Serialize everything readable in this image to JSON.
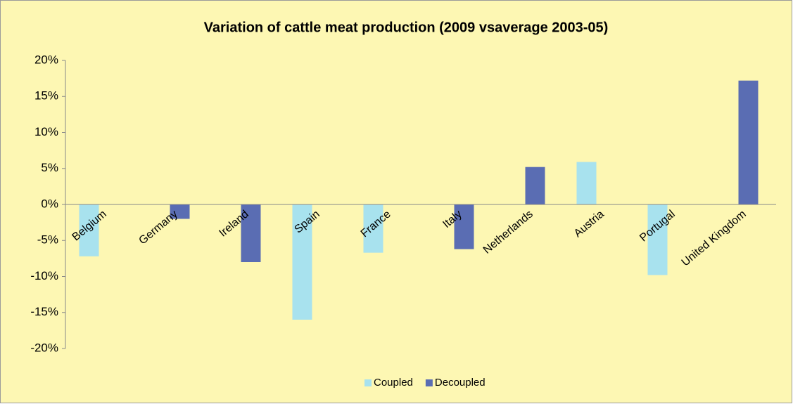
{
  "chart_data": {
    "type": "bar",
    "title": "Variation of cattle meat production (2009 vsaverage 2003-05)",
    "categories": [
      "Belgium",
      "Germany",
      "Ireland",
      "Spain",
      "France",
      "Italy",
      "Netherlands",
      "Austria",
      "Portugal",
      "United Kingdom"
    ],
    "series": [
      {
        "name": "Coupled",
        "color": "#a8e2ee",
        "values": [
          -7.2,
          null,
          null,
          -16,
          -6.7,
          null,
          null,
          5.9,
          -9.8,
          null
        ]
      },
      {
        "name": "Decoupled",
        "color": "#5a6db3",
        "values": [
          null,
          -2,
          -8,
          null,
          null,
          -6.2,
          5.2,
          null,
          null,
          17.2
        ]
      }
    ],
    "ylim": [
      -20,
      20
    ],
    "yticks": [
      {
        "value": -20,
        "label": "-20%"
      },
      {
        "value": -15,
        "label": "-15%"
      },
      {
        "value": -10,
        "label": "-10%"
      },
      {
        "value": -5,
        "label": "-5%"
      },
      {
        "value": 0,
        "label": "0%"
      },
      {
        "value": 5,
        "label": "5%"
      },
      {
        "value": 10,
        "label": "10%"
      },
      {
        "value": 15,
        "label": "15%"
      },
      {
        "value": 20,
        "label": "20%"
      }
    ],
    "legend": "bottom"
  }
}
